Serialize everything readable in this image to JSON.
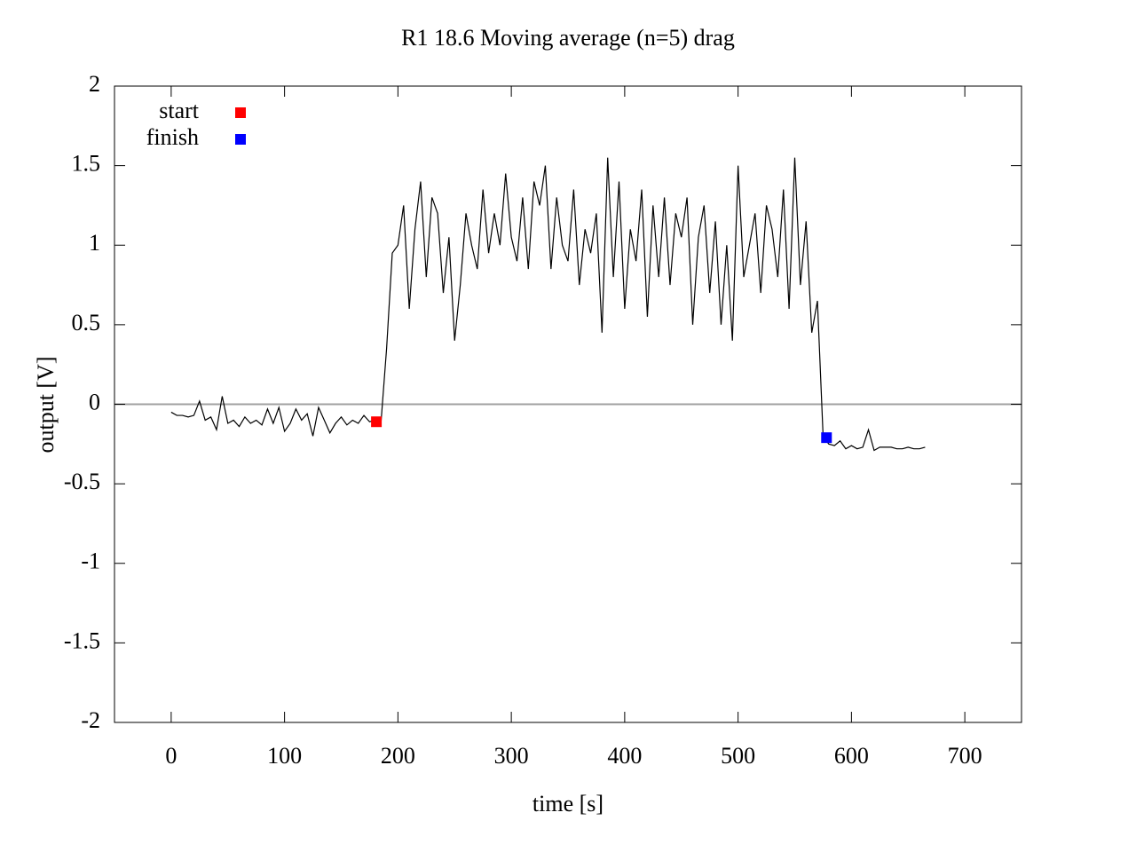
{
  "chart_data": {
    "type": "line",
    "title": "R1 18.6  Moving average (n=5) drag",
    "x_label": "time [s]",
    "y_label": "output [V]",
    "xlim": [
      -50,
      750
    ],
    "ylim": [
      -2,
      2
    ],
    "xticks": [
      0,
      100,
      200,
      300,
      400,
      500,
      600,
      700
    ],
    "yticks": [
      -2,
      -1.5,
      -1,
      -0.5,
      0,
      0.5,
      1,
      1.5,
      2
    ],
    "reference_line": 0,
    "reference_color": "#a0a0a0",
    "legend": "top-left",
    "x": [
      0,
      5,
      10,
      15,
      20,
      25,
      30,
      35,
      40,
      45,
      50,
      55,
      60,
      65,
      70,
      75,
      80,
      85,
      90,
      95,
      100,
      105,
      110,
      115,
      120,
      125,
      130,
      135,
      140,
      145,
      150,
      155,
      160,
      165,
      170,
      175,
      180,
      185,
      190,
      195,
      200,
      205,
      210,
      215,
      220,
      225,
      230,
      235,
      240,
      245,
      250,
      255,
      260,
      265,
      270,
      275,
      280,
      285,
      290,
      295,
      300,
      305,
      310,
      315,
      320,
      325,
      330,
      335,
      340,
      345,
      350,
      355,
      360,
      365,
      370,
      375,
      380,
      385,
      390,
      395,
      400,
      405,
      410,
      415,
      420,
      425,
      430,
      435,
      440,
      445,
      450,
      455,
      460,
      465,
      470,
      475,
      480,
      485,
      490,
      495,
      500,
      505,
      510,
      515,
      520,
      525,
      530,
      535,
      540,
      545,
      550,
      555,
      560,
      565,
      570,
      575,
      580,
      585,
      590,
      595,
      600,
      605,
      610,
      615,
      620,
      625,
      630,
      635,
      640,
      645,
      650,
      655,
      660,
      665
    ],
    "series": [
      {
        "color": "#000000",
        "values": [
          -0.05,
          -0.07,
          -0.07,
          -0.08,
          -0.07,
          0.02,
          -0.1,
          -0.08,
          -0.16,
          0.05,
          -0.12,
          -0.1,
          -0.14,
          -0.08,
          -0.12,
          -0.1,
          -0.13,
          -0.03,
          -0.12,
          -0.02,
          -0.17,
          -0.12,
          -0.03,
          -0.1,
          -0.06,
          -0.2,
          -0.02,
          -0.1,
          -0.18,
          -0.12,
          -0.08,
          -0.13,
          -0.1,
          -0.12,
          -0.07,
          -0.11,
          -0.1,
          -0.12,
          0.35,
          0.95,
          1.0,
          1.25,
          0.6,
          1.1,
          1.4,
          0.8,
          1.3,
          1.2,
          0.7,
          1.05,
          0.4,
          0.75,
          1.2,
          1.0,
          0.85,
          1.35,
          0.95,
          1.2,
          1.0,
          1.45,
          1.05,
          0.9,
          1.3,
          0.85,
          1.4,
          1.25,
          1.5,
          0.85,
          1.3,
          1.0,
          0.9,
          1.35,
          0.75,
          1.1,
          0.95,
          1.2,
          0.45,
          1.55,
          0.8,
          1.4,
          0.6,
          1.1,
          0.9,
          1.35,
          0.55,
          1.25,
          0.8,
          1.3,
          0.75,
          1.2,
          1.05,
          1.3,
          0.5,
          1.05,
          1.25,
          0.7,
          1.15,
          0.5,
          1.0,
          0.4,
          1.5,
          0.8,
          1.0,
          1.2,
          0.7,
          1.25,
          1.1,
          0.8,
          1.35,
          0.6,
          1.55,
          0.75,
          1.15,
          0.45,
          0.65,
          -0.2,
          -0.25,
          -0.26,
          -0.23,
          -0.28,
          -0.26,
          -0.28,
          -0.27,
          -0.16,
          -0.29,
          -0.27,
          -0.27,
          -0.27,
          -0.28,
          -0.28,
          -0.27,
          -0.28,
          -0.28,
          -0.27
        ]
      },
      {
        "name": "start",
        "color": "#ff0000",
        "x": [
          181
        ],
        "values": [
          -0.11
        ]
      },
      {
        "name": "finish",
        "color": "#0000ff",
        "x": [
          578
        ],
        "values": [
          -0.21
        ]
      }
    ]
  }
}
